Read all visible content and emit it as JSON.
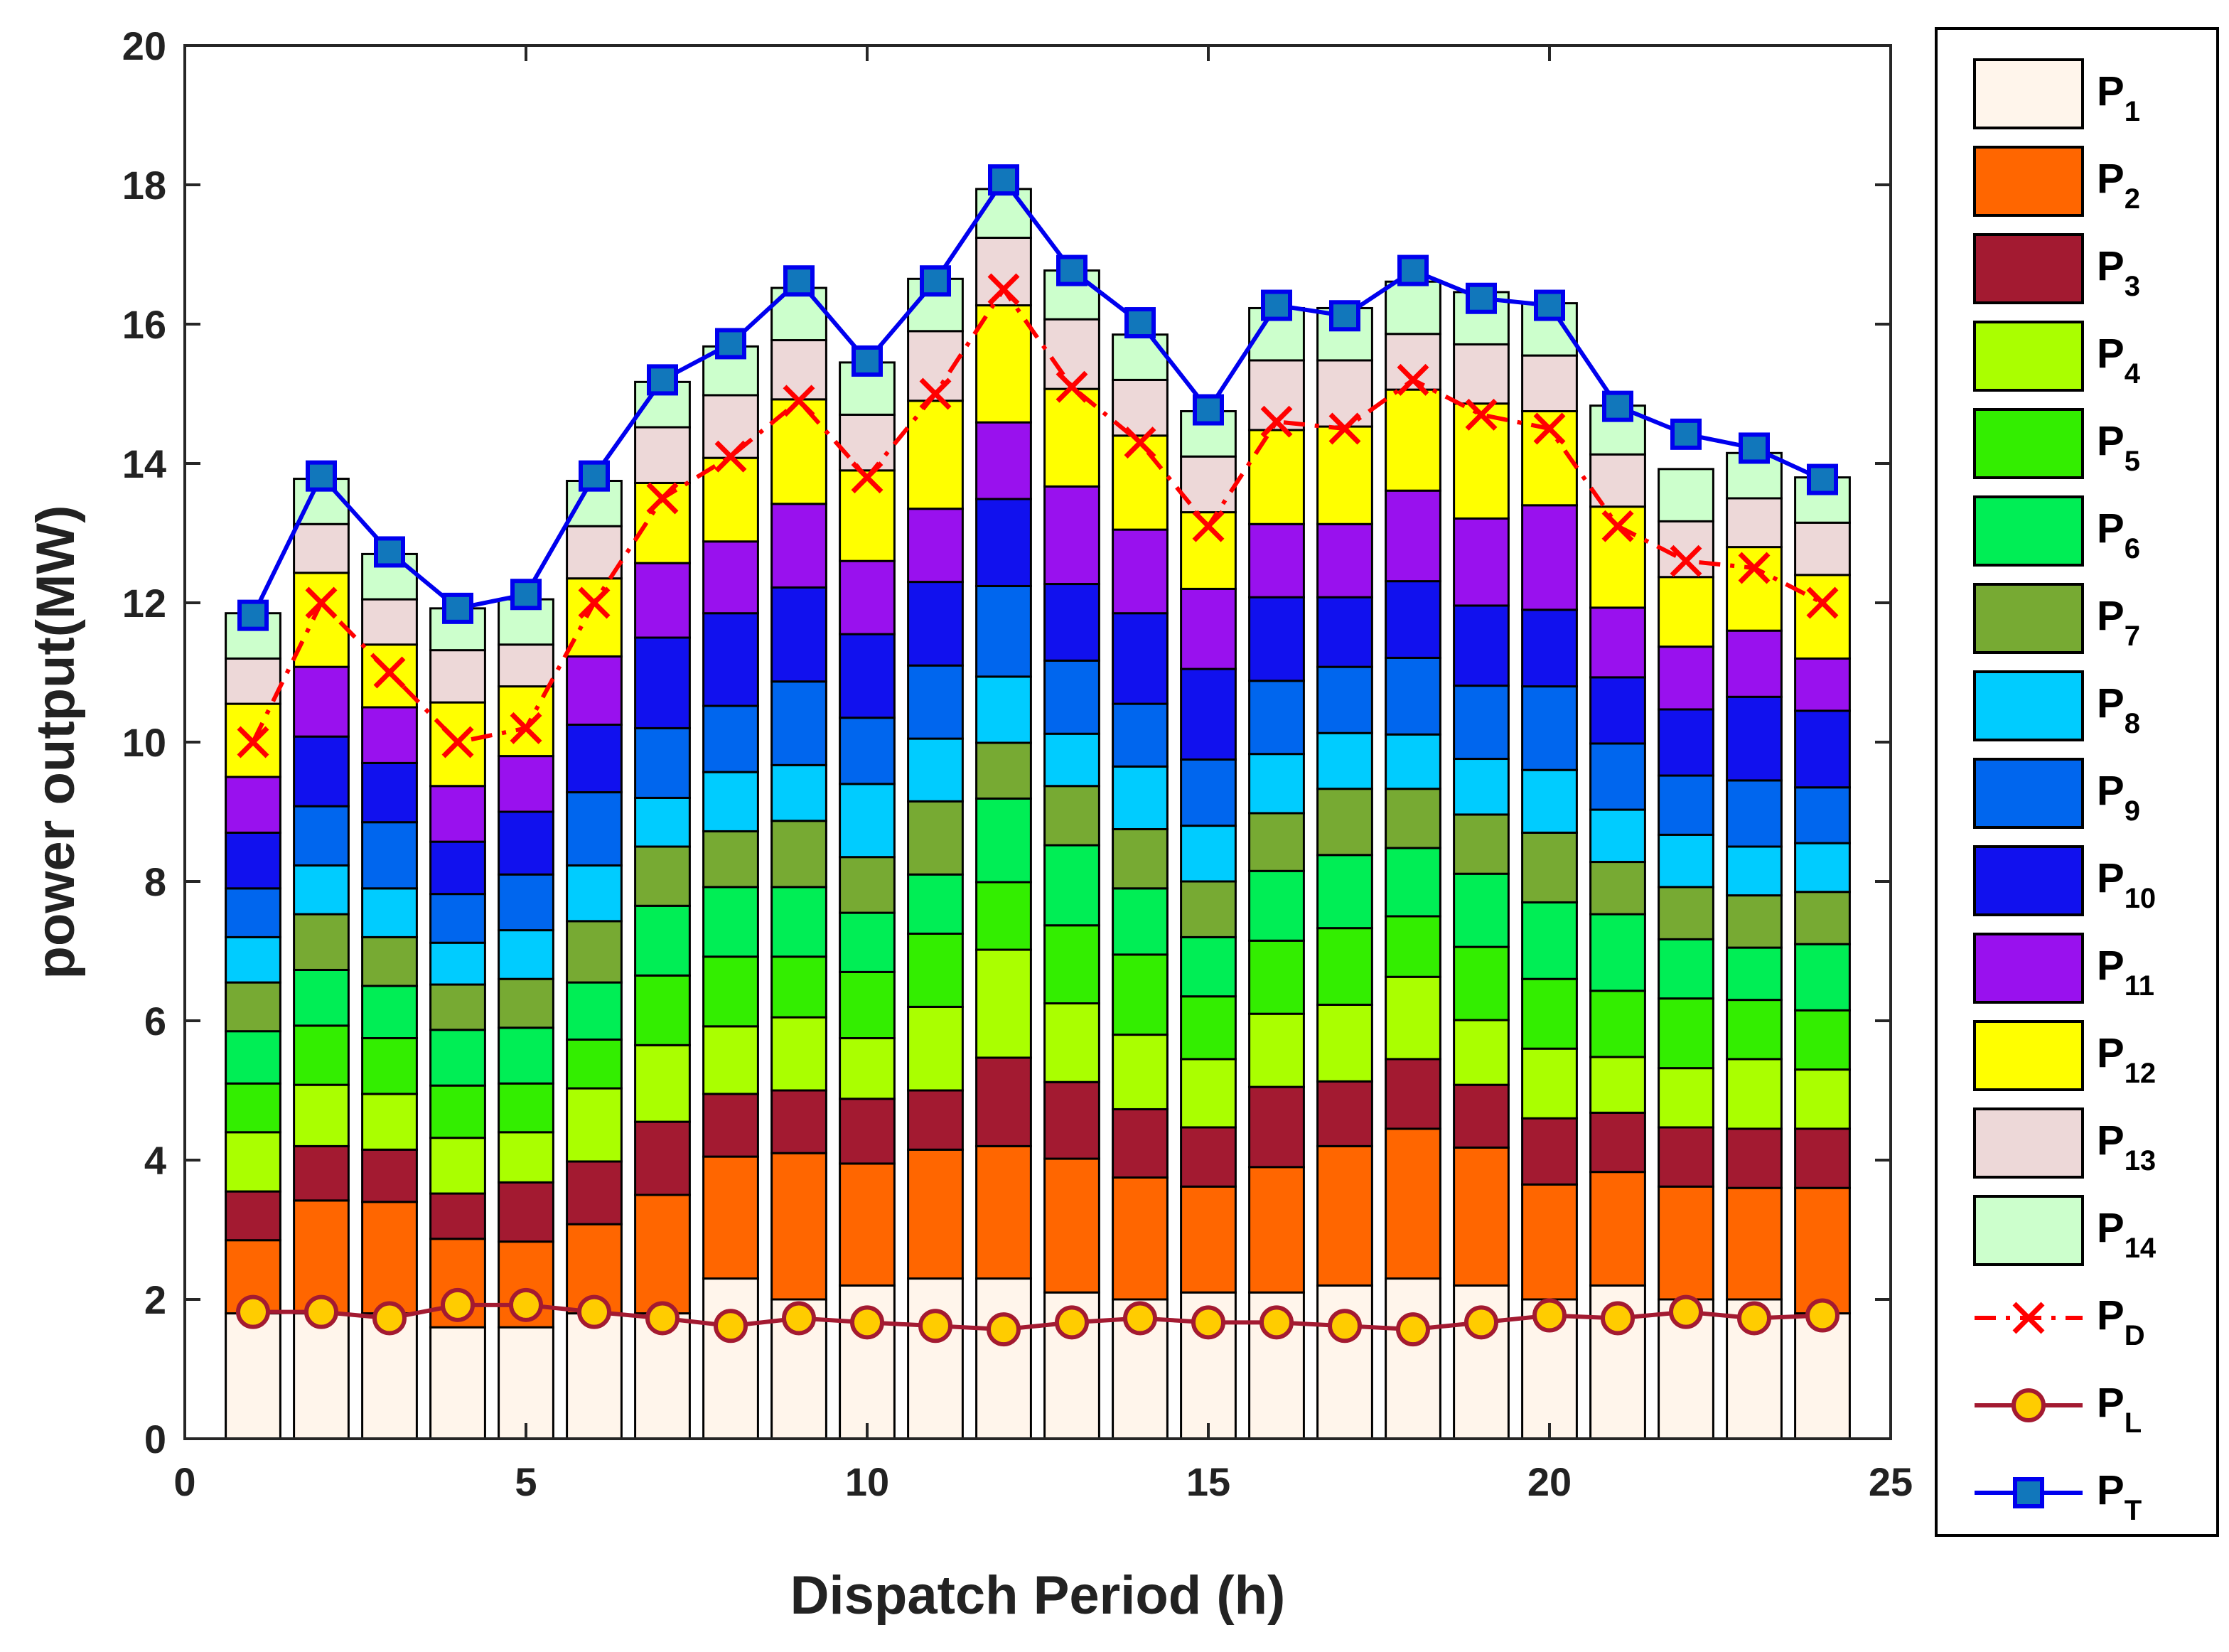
{
  "chart_data": {
    "type": "stacked-bar-with-lines",
    "xlabel": "Dispatch Period (h)",
    "ylabel": "power output(MW)",
    "xlim": [
      0,
      25
    ],
    "ylim": [
      0,
      20
    ],
    "xticks": [
      0,
      5,
      10,
      15,
      20,
      25
    ],
    "yticks": [
      0,
      2,
      4,
      6,
      8,
      10,
      12,
      14,
      16,
      18,
      20
    ],
    "grid": false,
    "legend_position": "outside-right",
    "hours": [
      1,
      2,
      3,
      4,
      5,
      6,
      7,
      8,
      9,
      10,
      11,
      12,
      13,
      14,
      15,
      16,
      17,
      18,
      19,
      20,
      21,
      22,
      23,
      24
    ],
    "series": [
      {
        "name": "P",
        "sub": "1",
        "color": "#FFF5EB",
        "values": [
          1.8,
          1.8,
          1.8,
          1.6,
          1.6,
          1.8,
          1.8,
          2.3,
          2.0,
          2.2,
          2.3,
          2.3,
          2.1,
          2.0,
          2.1,
          2.1,
          2.2,
          2.3,
          2.2,
          2.0,
          2.2,
          2.0,
          2.0,
          1.8
        ]
      },
      {
        "name": "P",
        "sub": "2",
        "color": "#FF6600",
        "values": [
          1.05,
          1.62,
          1.6,
          1.27,
          1.23,
          1.28,
          1.7,
          1.75,
          2.1,
          1.75,
          1.85,
          1.9,
          1.92,
          1.75,
          1.52,
          1.8,
          2.0,
          2.15,
          1.98,
          1.65,
          1.63,
          1.62,
          1.6,
          1.8
        ]
      },
      {
        "name": "P",
        "sub": "3",
        "color": "#A31A31",
        "values": [
          0.7,
          0.78,
          0.75,
          0.65,
          0.85,
          0.9,
          1.05,
          0.9,
          0.9,
          0.93,
          0.85,
          1.27,
          1.1,
          0.98,
          0.85,
          1.15,
          0.93,
          1.0,
          0.9,
          0.95,
          0.85,
          0.85,
          0.85,
          0.85
        ]
      },
      {
        "name": "P",
        "sub": "4",
        "color": "#AAFF00",
        "values": [
          0.85,
          0.88,
          0.8,
          0.8,
          0.72,
          1.05,
          1.1,
          0.97,
          1.05,
          0.87,
          1.2,
          1.55,
          1.13,
          1.07,
          0.98,
          1.05,
          1.1,
          1.18,
          0.93,
          1.0,
          0.8,
          0.85,
          1.0,
          0.85
        ]
      },
      {
        "name": "P",
        "sub": "5",
        "color": "#33EE00",
        "values": [
          0.7,
          0.85,
          0.8,
          0.75,
          0.7,
          0.7,
          1.0,
          1.0,
          0.87,
          0.95,
          1.05,
          0.97,
          1.12,
          1.15,
          0.9,
          1.05,
          1.1,
          0.87,
          1.05,
          1.0,
          0.95,
          1.0,
          0.85,
          0.85
        ]
      },
      {
        "name": "P",
        "sub": "6",
        "color": "#00EE55",
        "values": [
          0.75,
          0.8,
          0.75,
          0.8,
          0.8,
          0.82,
          1.0,
          1.0,
          1.0,
          0.85,
          0.85,
          1.2,
          1.15,
          0.95,
          0.85,
          1.0,
          1.05,
          0.98,
          1.05,
          1.1,
          1.1,
          0.85,
          0.75,
          0.95
        ]
      },
      {
        "name": "P",
        "sub": "7",
        "color": "#77AA33",
        "values": [
          0.7,
          0.8,
          0.7,
          0.65,
          0.7,
          0.88,
          0.85,
          0.8,
          0.95,
          0.8,
          1.05,
          0.8,
          0.85,
          0.85,
          0.8,
          0.83,
          0.95,
          0.85,
          0.85,
          1.0,
          0.75,
          0.75,
          0.75,
          0.75
        ]
      },
      {
        "name": "P",
        "sub": "8",
        "color": "#00CCFF",
        "values": [
          0.65,
          0.7,
          0.7,
          0.6,
          0.7,
          0.8,
          0.7,
          0.85,
          0.8,
          1.05,
          0.9,
          0.95,
          0.75,
          0.9,
          0.8,
          0.85,
          0.8,
          0.78,
          0.8,
          0.9,
          0.75,
          0.75,
          0.7,
          0.7
        ]
      },
      {
        "name": "P",
        "sub": "9",
        "color": "#0066EE",
        "values": [
          0.7,
          0.85,
          0.95,
          0.7,
          0.8,
          1.05,
          1.0,
          0.95,
          1.2,
          0.95,
          1.05,
          1.3,
          1.05,
          0.9,
          0.95,
          1.05,
          0.95,
          1.1,
          1.05,
          1.2,
          0.95,
          0.85,
          0.95,
          0.8
        ]
      },
      {
        "name": "P",
        "sub": "10",
        "color": "#1111EE",
        "values": [
          0.8,
          1.0,
          0.85,
          0.75,
          0.9,
          0.97,
          1.3,
          1.33,
          1.35,
          1.2,
          1.2,
          1.25,
          1.1,
          1.3,
          1.3,
          1.2,
          1.0,
          1.1,
          1.15,
          1.1,
          0.95,
          0.95,
          1.2,
          1.1
        ]
      },
      {
        "name": "P",
        "sub": "11",
        "color": "#9911EE",
        "values": [
          0.8,
          1.0,
          0.8,
          0.8,
          0.8,
          0.98,
          1.07,
          1.03,
          1.2,
          1.05,
          1.05,
          1.1,
          1.4,
          1.2,
          1.15,
          1.05,
          1.05,
          1.3,
          1.25,
          1.5,
          1.0,
          0.9,
          0.95,
          0.75
        ]
      },
      {
        "name": "P",
        "sub": "12",
        "color": "#FFFF00",
        "values": [
          1.05,
          1.35,
          0.9,
          1.2,
          1.0,
          1.12,
          1.15,
          1.2,
          1.5,
          1.3,
          1.55,
          1.68,
          1.4,
          1.35,
          1.1,
          1.35,
          1.4,
          1.45,
          1.65,
          1.35,
          1.45,
          1.0,
          1.2,
          1.2
        ]
      },
      {
        "name": "P",
        "sub": "13",
        "color": "#EDD8D8",
        "values": [
          0.65,
          0.7,
          0.65,
          0.75,
          0.6,
          0.75,
          0.8,
          0.9,
          0.85,
          0.8,
          1.0,
          0.97,
          1.0,
          0.8,
          0.8,
          1.0,
          0.95,
          0.8,
          0.85,
          0.8,
          0.75,
          0.8,
          0.7,
          0.75
        ]
      },
      {
        "name": "P",
        "sub": "14",
        "color": "#CCFFCC",
        "values": [
          0.65,
          0.65,
          0.65,
          0.6,
          0.65,
          0.65,
          0.65,
          0.7,
          0.75,
          0.75,
          0.75,
          0.7,
          0.7,
          0.65,
          0.65,
          0.75,
          0.75,
          0.75,
          0.75,
          0.75,
          0.7,
          0.75,
          0.65,
          0.65
        ]
      }
    ],
    "lines": [
      {
        "name": "P",
        "sub": "D",
        "color": "#FF0000",
        "marker": "x",
        "style": "dash-dot",
        "values": [
          10,
          12,
          11,
          10,
          10.2,
          12,
          13.5,
          14.1,
          14.9,
          13.8,
          15,
          16.5,
          15.1,
          14.3,
          13.1,
          14.6,
          14.5,
          15.2,
          14.7,
          14.5,
          13.1,
          12.6,
          12.5,
          12
        ]
      },
      {
        "name": "P",
        "sub": "L",
        "color": "#A31A31",
        "marker": "circle",
        "marker_fill": "#FFCC00",
        "style": "solid",
        "values": [
          1.82,
          1.82,
          1.73,
          1.92,
          1.92,
          1.82,
          1.73,
          1.62,
          1.73,
          1.67,
          1.62,
          1.57,
          1.67,
          1.73,
          1.67,
          1.67,
          1.62,
          1.57,
          1.67,
          1.77,
          1.73,
          1.82,
          1.73,
          1.77
        ]
      },
      {
        "name": "P",
        "sub": "T",
        "color": "#0000EE",
        "marker": "square",
        "marker_fill": "#1177BB",
        "style": "solid",
        "values": [
          11.82,
          13.82,
          12.73,
          11.92,
          12.12,
          13.82,
          15.2,
          15.72,
          16.62,
          15.47,
          16.62,
          18.07,
          16.77,
          16.02,
          14.77,
          16.27,
          16.12,
          16.77,
          16.37,
          16.27,
          14.82,
          14.42,
          14.22,
          13.77
        ]
      }
    ]
  }
}
